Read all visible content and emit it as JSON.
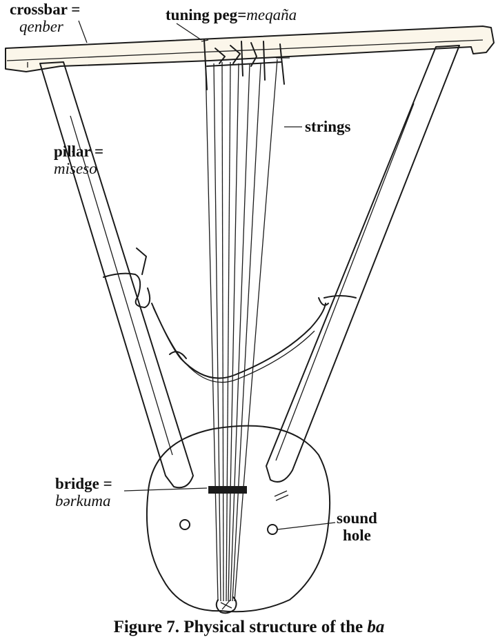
{
  "labels": {
    "crossbar": {
      "term": "crossbar =",
      "local": "qenber"
    },
    "tuning_peg": {
      "term": "tuning peg",
      "eq": "=",
      "local": "meqaña"
    },
    "strings": {
      "term": "strings"
    },
    "pillar": {
      "term": "pillar =",
      "local": "miseso"
    },
    "bridge": {
      "term": "bridge =",
      "local": "bərkuma"
    },
    "sound_hole": {
      "term": "sound",
      "term2": "hole"
    }
  },
  "caption": {
    "prefix": "Figure 7.",
    "text": "Physical structure of the",
    "suffix": "ba"
  },
  "colors": {
    "ink": "#1a1a1a",
    "paper": "#ffffff",
    "wood_tint": "#fbf6ea"
  }
}
